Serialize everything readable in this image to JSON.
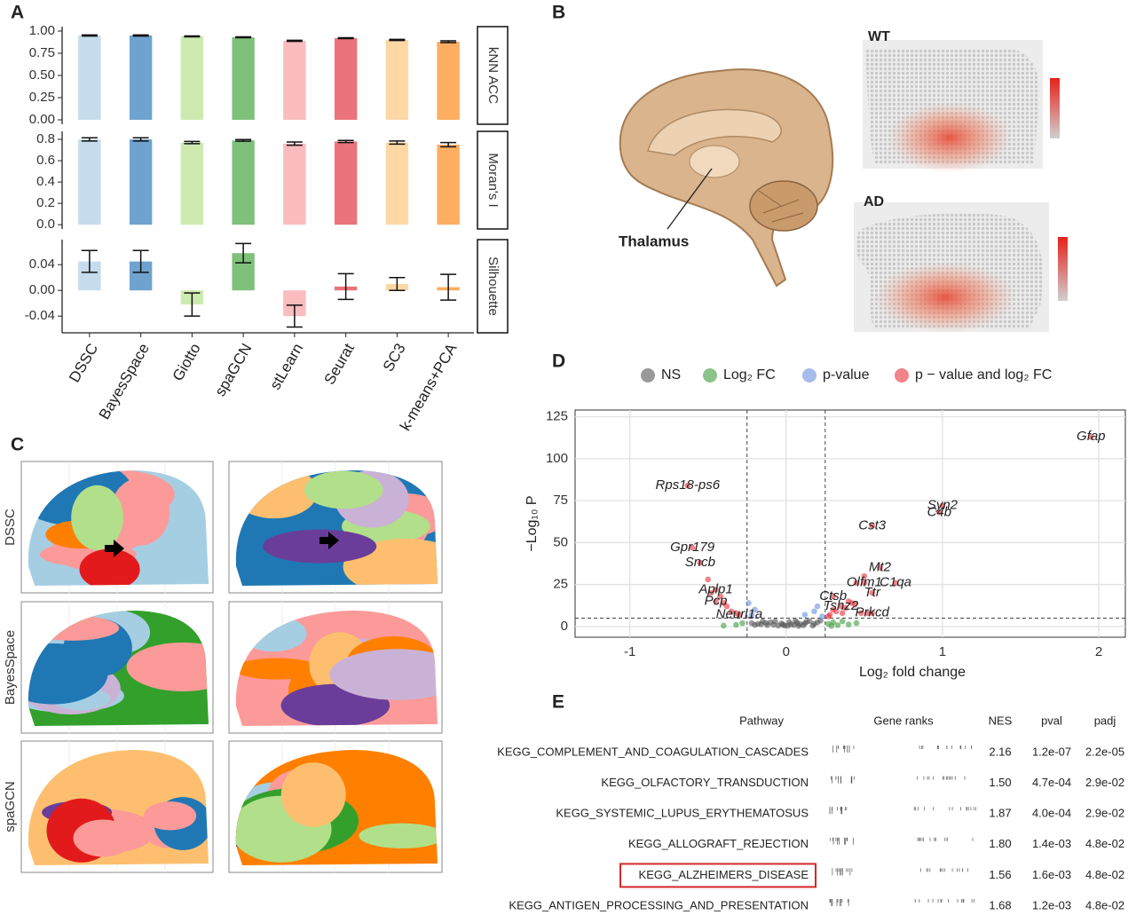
{
  "panel_labels": [
    "A",
    "B",
    "C",
    "D",
    "E"
  ],
  "chart_data": [
    {
      "type": "bar",
      "facet": "kNN ACC",
      "values": [
        0.95,
        0.95,
        0.94,
        0.93,
        0.89,
        0.92,
        0.9,
        0.88
      ],
      "errors": [
        0.006,
        0.006,
        0.005,
        0.005,
        0.006,
        0.005,
        0.006,
        0.01
      ],
      "colors": [
        "#c6dcec",
        "#6fa3cf",
        "#cdebb0",
        "#7fc17b",
        "#fbbcc0",
        "#ea7479",
        "#fdd8a5",
        "#fdae61"
      ],
      "ylim": [
        -0.05,
        1.05
      ],
      "yticks": [
        {
          "value": 0,
          "label": "0.00"
        },
        {
          "value": 0.25,
          "label": "0.25"
        },
        {
          "value": 0.5,
          "label": "0.50"
        },
        {
          "value": 0.75,
          "label": "0.75"
        },
        {
          "value": 1,
          "label": "1.00"
        }
      ]
    },
    {
      "type": "bar",
      "facet": "Moran's I",
      "values": [
        0.8,
        0.8,
        0.77,
        0.79,
        0.76,
        0.78,
        0.77,
        0.75
      ],
      "errors": [
        0.015,
        0.015,
        0.01,
        0.008,
        0.015,
        0.01,
        0.015,
        0.02
      ],
      "colors": [
        "#c6dcec",
        "#6fa3cf",
        "#cdebb0",
        "#7fc17b",
        "#fbbcc0",
        "#ea7479",
        "#fdd8a5",
        "#fdae61"
      ],
      "ylim": [
        -0.04,
        0.875
      ],
      "yticks": [
        {
          "value": 0,
          "label": "0.0"
        },
        {
          "value": 0.2,
          "label": "0.2"
        },
        {
          "value": 0.4,
          "label": "0.4"
        },
        {
          "value": 0.6,
          "label": "0.6"
        },
        {
          "value": 0.8,
          "label": "0.8"
        }
      ]
    },
    {
      "type": "bar",
      "facet": "Silhouette",
      "categories": [
        "DSSC",
        "BayesSpace",
        "Giotto",
        "spaGCN",
        "stLearn",
        "Seurat",
        "SC3",
        "k-means+PCA"
      ],
      "values": [
        0.045,
        0.045,
        -0.022,
        0.058,
        -0.04,
        0.006,
        0.01,
        0.005
      ],
      "errors": [
        0.017,
        0.017,
        0.018,
        0.015,
        0.017,
        0.02,
        0.01,
        0.02
      ],
      "colors": [
        "#c6dcec",
        "#6fa3cf",
        "#cdebb0",
        "#7fc17b",
        "#fbbcc0",
        "#ea7479",
        "#fdd8a5",
        "#fdae61"
      ],
      "ylim": [
        -0.066,
        0.079
      ],
      "yticks": [
        {
          "value": -0.04,
          "label": "-0.04"
        },
        {
          "value": 0,
          "label": "0.00"
        },
        {
          "value": 0.04,
          "label": "0.04"
        }
      ]
    },
    {
      "type": "scatter",
      "x_label": "Log₂ fold change",
      "y_label": "−Log₁₀ P",
      "xlim": [
        -1.35,
        2.17
      ],
      "ylim": [
        -6.4,
        129
      ],
      "xticks": [
        -1,
        0,
        1,
        2
      ],
      "yticks": [
        0,
        25,
        50,
        75,
        100,
        125
      ],
      "grid": true,
      "legend": "top",
      "vlines": [
        -0.25,
        0.25
      ],
      "hline": 5,
      "series": [
        {
          "name": "NS",
          "color": "#555555",
          "x": [
            -0.22,
            -0.18,
            -0.15,
            -0.12,
            -0.1,
            -0.08,
            -0.05,
            -0.03,
            -0.01,
            0.01,
            0.03,
            0.05,
            0.07,
            0.09,
            0.11,
            0.13,
            0.15,
            0.18,
            0.2,
            0.22,
            -0.2,
            -0.07,
            0.02,
            0.12,
            0.17,
            -0.13,
            0.06,
            -0.02,
            0.08,
            -0.16
          ],
          "y": [
            2,
            1.5,
            3,
            0.8,
            2.5,
            1,
            0.5,
            1.8,
            0.6,
            0.4,
            1.2,
            0.9,
            2.2,
            1.4,
            0.7,
            2.8,
            3.2,
            1.6,
            2.4,
            3.5,
            0.9,
            3.1,
            2.7,
            1.9,
            0.5,
            2.1,
            3.4,
            1.1,
            0.3,
            1.3
          ]
        },
        {
          "name": "Log₂ FC",
          "color": "#3e9b3e",
          "x": [
            -0.32,
            -0.28,
            -0.4,
            0.27,
            0.3,
            0.33,
            0.36,
            0.4,
            0.29,
            0.45
          ],
          "y": [
            1,
            2,
            0.5,
            1.5,
            2.5,
            0.8,
            3,
            1.2,
            0.3,
            2
          ]
        },
        {
          "name": "p-value",
          "color": "#6b8fe0",
          "x": [
            -0.2,
            -0.22,
            0.12,
            0.18,
            0.2,
            0.23,
            -0.24
          ],
          "y": [
            10,
            7,
            7,
            9,
            12,
            6,
            14
          ]
        },
        {
          "name": "p − value and log₂ FC",
          "color": "#e8303a",
          "x": [
            -0.63,
            -0.6,
            -0.55,
            -0.5,
            -0.48,
            -0.45,
            -0.45,
            -0.42,
            -0.4,
            -0.38,
            -0.35,
            -0.32,
            -0.3,
            0.27,
            0.28,
            0.3,
            0.3,
            0.32,
            0.35,
            0.36,
            0.38,
            0.4,
            0.42,
            0.44,
            0.45,
            0.48,
            0.5,
            0.5,
            0.52,
            0.55,
            0.55,
            0.55,
            0.6,
            0.7,
            0.98,
            1.0,
            1.95
          ],
          "y": [
            84,
            47,
            38,
            28,
            20,
            22,
            15,
            18,
            14,
            12,
            9,
            8,
            7,
            6,
            7,
            18,
            10,
            9,
            12,
            8,
            11,
            15,
            14,
            13,
            26,
            8,
            26,
            30,
            8,
            20,
            60,
            8,
            35,
            26,
            68,
            72,
            113
          ]
        }
      ],
      "annotations": [
        {
          "text": "Gfap",
          "x": 1.95,
          "y": 113
        },
        {
          "text": "Rps18-ps6",
          "x": -0.63,
          "y": 84
        },
        {
          "text": "Syn2",
          "x": 1.0,
          "y": 72
        },
        {
          "text": "C4b",
          "x": 0.98,
          "y": 68
        },
        {
          "text": "Cst3",
          "x": 0.55,
          "y": 60
        },
        {
          "text": "Gpr179",
          "x": -0.6,
          "y": 47
        },
        {
          "text": "Sncb",
          "x": -0.55,
          "y": 38
        },
        {
          "text": "Mt2",
          "x": 0.6,
          "y": 35
        },
        {
          "text": "C1qa",
          "x": 0.7,
          "y": 26
        },
        {
          "text": "Olfm1",
          "x": 0.5,
          "y": 26
        },
        {
          "text": "Ttr",
          "x": 0.55,
          "y": 20
        },
        {
          "text": "Aplp1",
          "x": -0.45,
          "y": 22
        },
        {
          "text": "Ctsb",
          "x": 0.3,
          "y": 18
        },
        {
          "text": "Pcp",
          "x": -0.45,
          "y": 15
        },
        {
          "text": "Tshz2",
          "x": 0.35,
          "y": 12
        },
        {
          "text": "Prkcd",
          "x": 0.55,
          "y": 8
        },
        {
          "text": "Neurl1a",
          "x": -0.3,
          "y": 7
        }
      ]
    }
  ],
  "brain": {
    "label": "Thalamus",
    "maps": [
      "WT",
      "AD"
    ]
  },
  "clusters": {
    "rows": [
      "DSSC",
      "BayesSpace",
      "spaGCN"
    ]
  },
  "table": {
    "columns": [
      "Pathway",
      "Gene ranks",
      "NES",
      "pval",
      "padj"
    ],
    "rows": [
      [
        "KEGG_COMPLEMENT_AND_COAGULATION_CASCADES",
        "2.16",
        "1.2e-07",
        "2.2e-05"
      ],
      [
        "KEGG_OLFACTORY_TRANSDUCTION",
        "1.50",
        "4.7e-04",
        "2.9e-02"
      ],
      [
        "KEGG_SYSTEMIC_LUPUS_ERYTHEMATOSUS",
        "1.87",
        "4.0e-04",
        "2.9e-02"
      ],
      [
        "KEGG_ALLOGRAFT_REJECTION",
        "1.80",
        "1.4e-03",
        "4.8e-02"
      ],
      [
        "KEGG_ALZHEIMERS_DISEASE",
        "1.56",
        "1.6e-03",
        "4.8e-02"
      ],
      [
        "KEGG_ANTIGEN_PROCESSING_AND_PRESENTATION",
        "1.68",
        "1.2e-03",
        "4.8e-02"
      ]
    ],
    "highlight_row": 4
  }
}
